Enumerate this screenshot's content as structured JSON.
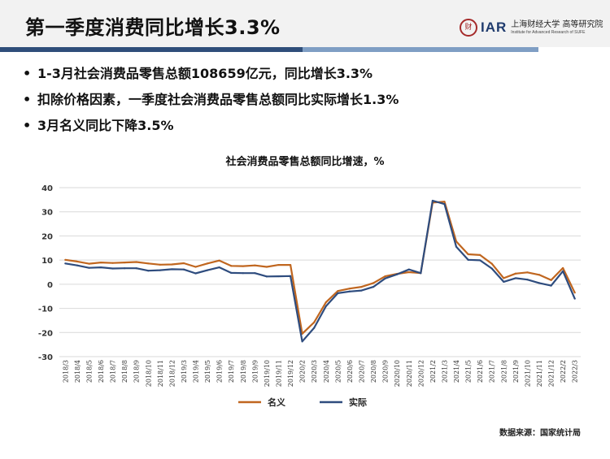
{
  "header": {
    "title": "第一季度消费同比增长3.3%",
    "logo": {
      "seal": "财",
      "abbr": "IAR",
      "name_cn": "上海财经大学 高等研究院",
      "name_en": "Institute for Advanced Research of SUFE"
    }
  },
  "bullets": [
    "1-3月社会消费品零售总额108659亿元，同比增长3.3%",
    "扣除价格因素，一季度社会消费品零售总额同比实际增长1.3%",
    "3月名义同比下降3.5%"
  ],
  "source": "数据来源：国家统计局",
  "colors": {
    "nominal": "#c0661f",
    "real": "#2e4c7e",
    "grid": "#d9d9d9"
  },
  "chart_data": {
    "type": "line",
    "title": "社会消费品零售总额同比增速，%",
    "xlabel": "",
    "ylabel": "",
    "ylim": [
      -30,
      40
    ],
    "yticks": [
      -30,
      -20,
      -10,
      0,
      10,
      20,
      30,
      40
    ],
    "grid": true,
    "legend": "bottom",
    "categories": [
      "2018/3",
      "2018/4",
      "2018/5",
      "2018/6",
      "2018/7",
      "2018/8",
      "2018/9",
      "2018/10",
      "2018/11",
      "2018/12",
      "2019/3",
      "2019/4",
      "2019/5",
      "2019/6",
      "2019/7",
      "2019/8",
      "2019/9",
      "2019/10",
      "2019/11",
      "2019/12",
      "2020/2",
      "2020/3",
      "2020/4",
      "2020/5",
      "2020/6",
      "2020/7",
      "2020/8",
      "2020/9",
      "2020/10",
      "2020/11",
      "2020/12",
      "2021/2",
      "2021/3",
      "2021/4",
      "2021/5",
      "2021/6",
      "2021/7",
      "2021/8",
      "2021/9",
      "2021/10",
      "2021/11",
      "2021/12",
      "2022/2",
      "2022/3"
    ],
    "series": [
      {
        "name": "名义",
        "color_key": "nominal",
        "values": [
          10.1,
          9.4,
          8.5,
          9.0,
          8.8,
          9.0,
          9.2,
          8.6,
          8.1,
          8.2,
          8.7,
          7.2,
          8.6,
          9.8,
          7.6,
          7.5,
          7.8,
          7.2,
          8.0,
          8.0,
          -20.5,
          -15.8,
          -7.5,
          -2.8,
          -1.8,
          -1.1,
          0.5,
          3.3,
          4.3,
          5.0,
          4.6,
          33.8,
          34.2,
          17.7,
          12.4,
          12.1,
          8.5,
          2.5,
          4.4,
          4.9,
          3.9,
          1.7,
          6.7,
          -3.5
        ]
      },
      {
        "name": "实际",
        "color_key": "real",
        "values": [
          8.6,
          7.8,
          6.8,
          7.0,
          6.5,
          6.6,
          6.6,
          5.6,
          5.8,
          6.2,
          6.1,
          4.5,
          5.8,
          7.0,
          4.7,
          4.6,
          4.6,
          3.2,
          3.3,
          3.4,
          -23.7,
          -18.1,
          -9.1,
          -3.7,
          -3.0,
          -2.6,
          -1.1,
          2.4,
          4.1,
          6.1,
          4.6,
          34.6,
          33.2,
          15.5,
          10.1,
          9.9,
          6.5,
          1.0,
          2.5,
          1.9,
          0.5,
          -0.6,
          5.4,
          -6.0
        ]
      }
    ]
  }
}
